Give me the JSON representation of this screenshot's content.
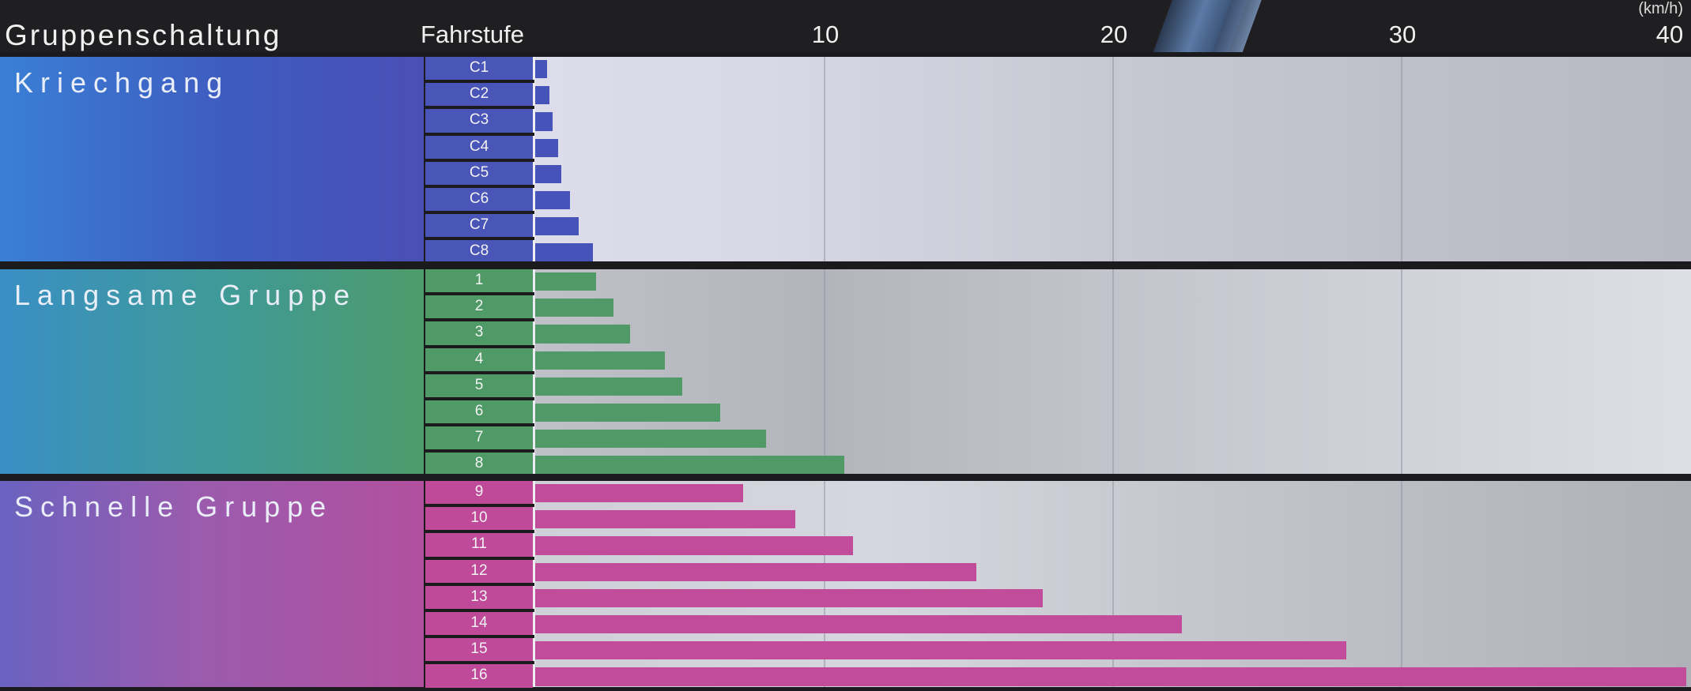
{
  "header": {
    "title": "Gruppenschaltung",
    "fahrstufe_label": "Fahrstufe",
    "unit": "(km/h)",
    "ticks": [
      "10",
      "20",
      "30",
      "40"
    ]
  },
  "chart_data": {
    "type": "bar",
    "orientation": "horizontal",
    "title": "",
    "xlabel": "(km/h)",
    "ylabel": "Fahrstufe",
    "xlim": [
      0,
      40
    ],
    "xticks": [
      10,
      20,
      30,
      40
    ],
    "grid": true,
    "groups": [
      {
        "name": "Kriechgang",
        "color": "#4653b8",
        "categories": [
          "C1",
          "C2",
          "C3",
          "C4",
          "C5",
          "C6",
          "C7",
          "C8"
        ],
        "values": [
          0.4,
          0.5,
          0.6,
          0.8,
          0.9,
          1.2,
          1.5,
          2.0
        ]
      },
      {
        "name": "Langsame Gruppe",
        "color": "#4f9a66",
        "categories": [
          "1",
          "2",
          "3",
          "4",
          "5",
          "6",
          "7",
          "8"
        ],
        "values": [
          2.1,
          2.7,
          3.3,
          4.5,
          5.1,
          6.4,
          8.0,
          10.7
        ]
      },
      {
        "name": "Schnelle Gruppe",
        "color": "#c14c9a",
        "categories": [
          "9",
          "10",
          "11",
          "12",
          "13",
          "14",
          "15",
          "16"
        ],
        "values": [
          7.2,
          9.0,
          11.0,
          15.3,
          17.6,
          22.4,
          28.1,
          39.9
        ]
      }
    ]
  }
}
